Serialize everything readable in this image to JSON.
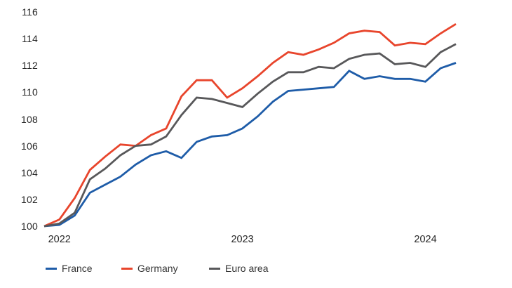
{
  "chart_data": {
    "type": "line",
    "title": "",
    "xlabel": "",
    "ylabel": "",
    "grid": false,
    "legend_position": "bottom",
    "y_ticks": [
      100,
      102,
      104,
      106,
      108,
      110,
      112,
      114,
      116
    ],
    "ylim": [
      100,
      116
    ],
    "x_tick_labels": [
      {
        "label": "2022",
        "month_index": 1
      },
      {
        "label": "2023",
        "month_index": 13
      },
      {
        "label": "2024",
        "month_index": 25
      }
    ],
    "months": [
      "Dec 2021",
      "Jan 2022",
      "Feb 2022",
      "Mar 2022",
      "Apr 2022",
      "May 2022",
      "Jun 2022",
      "Jul 2022",
      "Aug 2022",
      "Sep 2022",
      "Oct 2022",
      "Nov 2022",
      "Dec 2022",
      "Jan 2023",
      "Feb 2023",
      "Mar 2023",
      "Apr 2023",
      "May 2023",
      "Jun 2023",
      "Jul 2023",
      "Aug 2023",
      "Sep 2023",
      "Oct 2023",
      "Nov 2023",
      "Dec 2023",
      "Jan 2024",
      "Feb 2024",
      "Mar 2024"
    ],
    "series": [
      {
        "name": "France",
        "color": "#1e5ca8",
        "values": [
          100.0,
          100.1,
          100.8,
          102.5,
          103.1,
          103.7,
          104.6,
          105.3,
          105.6,
          105.1,
          106.3,
          106.7,
          106.8,
          107.3,
          108.2,
          109.3,
          110.1,
          110.2,
          110.3,
          110.4,
          111.6,
          111.0,
          111.2,
          111.0,
          111.0,
          110.8,
          111.8,
          112.2
        ]
      },
      {
        "name": "Germany",
        "color": "#e8452c",
        "values": [
          100.0,
          100.5,
          102.1,
          104.2,
          105.2,
          106.1,
          106.0,
          106.8,
          107.3,
          109.7,
          110.9,
          110.9,
          109.6,
          110.3,
          111.2,
          112.2,
          113.0,
          112.8,
          113.2,
          113.7,
          114.4,
          114.6,
          114.5,
          113.5,
          113.7,
          113.6,
          114.4,
          115.1
        ]
      },
      {
        "name": "Euro area",
        "color": "#58585a",
        "values": [
          100.0,
          100.2,
          101.0,
          103.5,
          104.3,
          105.3,
          106.0,
          106.1,
          106.7,
          108.3,
          109.6,
          109.5,
          109.2,
          108.9,
          109.9,
          110.8,
          111.5,
          111.5,
          111.9,
          111.8,
          112.5,
          112.8,
          112.9,
          112.1,
          112.2,
          111.9,
          113.0,
          113.6
        ]
      }
    ]
  },
  "colors": {
    "background": "#ffffff",
    "tick_text": "#262626",
    "legend_text": "#333333"
  }
}
